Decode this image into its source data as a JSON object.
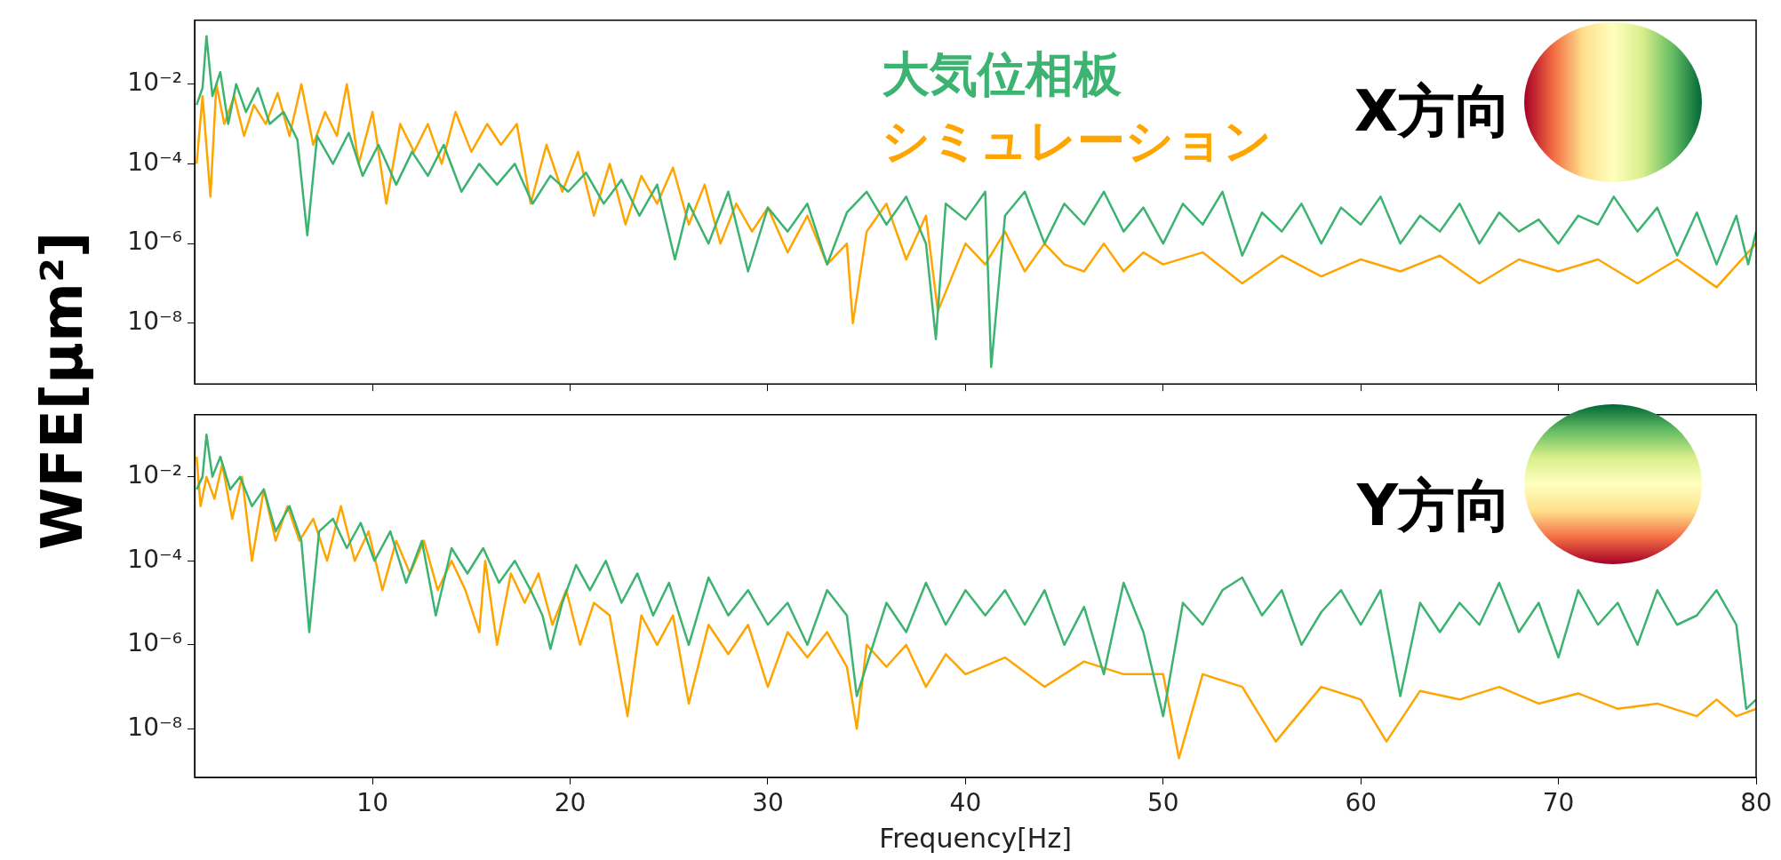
{
  "chart_data": [
    {
      "type": "line",
      "ylabel": "WFE[μm²]",
      "annotations": [
        "X方向"
      ],
      "legend": "top right",
      "log": true,
      "tick_labels": "y",
      "xlim": [
        1,
        80
      ],
      "xticks": [
        10,
        20,
        30,
        40,
        50,
        60,
        70,
        80
      ],
      "ylim": [
        3e-10,
        0.4
      ],
      "yticks": [
        {
          "value": 1e-08,
          "label": "10⁻⁸"
        },
        {
          "value": 1e-06,
          "label": "10⁻⁶"
        },
        {
          "value": 0.0001,
          "label": "10⁻⁴"
        },
        {
          "value": 0.01,
          "label": "10⁻²"
        }
      ],
      "series": [
        {
          "name": "大気位相板",
          "color": "#3cb371",
          "x": [
            1.1,
            1.4,
            1.6,
            1.9,
            2.3,
            2.7,
            3.1,
            3.6,
            4.2,
            4.8,
            5.5,
            6.2,
            6.7,
            7.2,
            8,
            8.8,
            9.5,
            10.3,
            11.2,
            12,
            12.8,
            13.6,
            14.5,
            15.4,
            16.3,
            17.2,
            18.1,
            19,
            19.9,
            20.8,
            21.7,
            22.6,
            23.5,
            24.4,
            25.3,
            26,
            27,
            28,
            29,
            30,
            31,
            32,
            33,
            34,
            35,
            36,
            37,
            38,
            38.5,
            39,
            40,
            41,
            41.3,
            42,
            43,
            44,
            45,
            46,
            47,
            48,
            49,
            50,
            51,
            52,
            53,
            54,
            55,
            56,
            57,
            58,
            59,
            60,
            61,
            62,
            63,
            64,
            65,
            66,
            67,
            68,
            69,
            70,
            71,
            72,
            72.8,
            74,
            75,
            76,
            77,
            78,
            79,
            79.6,
            80
          ],
          "values": [
            0.003,
            0.008,
            0.16,
            0.005,
            0.02,
            0.001,
            0.01,
            0.002,
            0.008,
            0.001,
            0.002,
            0.0004,
            1.6e-06,
            0.0005,
            0.0001,
            0.0006,
            5e-05,
            0.0003,
            3e-05,
            0.0002,
            5e-05,
            0.0003,
            2e-05,
            0.0001,
            3e-05,
            0.0001,
            1e-05,
            5e-05,
            2e-05,
            6e-05,
            1e-05,
            4e-05,
            5e-06,
            3e-05,
            4e-07,
            1e-05,
            1e-06,
            2e-05,
            2e-07,
            8e-06,
            2e-06,
            1e-05,
            3e-07,
            6e-06,
            2e-05,
            3e-06,
            1.5e-05,
            1e-06,
            4e-09,
            1e-05,
            4e-06,
            2e-05,
            8e-10,
            5e-06,
            2e-05,
            1e-06,
            1e-05,
            3e-06,
            2e-05,
            2e-06,
            8e-06,
            1e-06,
            1e-05,
            3e-06,
            2e-05,
            5e-07,
            6e-06,
            2e-06,
            1e-05,
            1e-06,
            8e-06,
            3e-06,
            1.5e-05,
            1e-06,
            5e-06,
            2e-06,
            1e-05,
            1e-06,
            6e-06,
            2e-06,
            4e-06,
            1e-06,
            5e-06,
            3e-06,
            1.5e-05,
            2e-06,
            8e-06,
            5e-07,
            6e-06,
            3e-07,
            5e-06,
            3e-07,
            2e-06
          ]
        },
        {
          "name": "シミュレーション",
          "color": "#ffa500",
          "x": [
            1.1,
            1.4,
            1.8,
            2.1,
            2.5,
            3,
            3.5,
            4,
            4.6,
            5.2,
            5.8,
            6.4,
            7,
            7.6,
            8.2,
            8.7,
            9.3,
            10,
            10.7,
            11.4,
            12.1,
            12.8,
            13.5,
            14.2,
            15,
            15.8,
            16.5,
            17.3,
            18,
            18.8,
            19.6,
            20.4,
            21.2,
            22,
            22.8,
            23.6,
            24.4,
            25.2,
            26,
            26.8,
            27.6,
            28.4,
            29.2,
            30,
            31,
            32,
            33,
            34,
            34.3,
            35,
            36,
            37,
            38,
            38.6,
            40,
            41,
            42,
            43,
            44,
            45,
            46,
            47,
            48,
            49,
            50,
            52,
            54,
            56,
            58,
            60,
            62,
            64,
            66,
            68,
            70,
            72,
            74,
            76,
            78,
            80
          ],
          "values": [
            0.0001,
            0.005,
            1.5e-05,
            0.01,
            0.001,
            0.005,
            0.0005,
            0.003,
            0.001,
            0.006,
            0.0005,
            0.01,
            0.0003,
            0.002,
            0.0005,
            0.01,
            0.0001,
            0.002,
            1e-05,
            0.001,
            0.0002,
            0.001,
            0.0001,
            0.002,
            0.0002,
            0.001,
            0.0003,
            0.001,
            1e-05,
            0.0003,
            2e-05,
            0.0002,
            5e-06,
            0.0001,
            3e-06,
            5e-05,
            1e-05,
            8e-05,
            3e-06,
            3e-05,
            1e-06,
            1e-05,
            2e-06,
            8e-06,
            6e-07,
            5e-06,
            3e-07,
            1e-06,
            1e-08,
            2e-06,
            1e-05,
            4e-07,
            5e-06,
            2e-08,
            1e-06,
            3e-07,
            2e-06,
            2e-07,
            1e-06,
            3e-07,
            2e-07,
            1e-06,
            2e-07,
            6e-07,
            3e-07,
            6e-07,
            1e-07,
            5e-07,
            1.5e-07,
            4e-07,
            2e-07,
            5e-07,
            1e-07,
            4e-07,
            2e-07,
            4e-07,
            1e-07,
            4e-07,
            8e-08,
            1e-06
          ]
        }
      ]
    },
    {
      "type": "line",
      "xlabel": "Frequency[Hz]",
      "annotations": [
        "Y方向"
      ],
      "log": true,
      "xlim": [
        1,
        80
      ],
      "xticks": [
        10,
        20,
        30,
        40,
        50,
        60,
        70,
        80
      ],
      "ylim": [
        7e-10,
        0.3
      ],
      "yticks": [
        {
          "value": 1e-08,
          "label": "10⁻⁸"
        },
        {
          "value": 1e-06,
          "label": "10⁻⁶"
        },
        {
          "value": 0.0001,
          "label": "10⁻⁴"
        },
        {
          "value": 0.01,
          "label": "10⁻²"
        }
      ],
      "series": [
        {
          "color": "#3cb371",
          "x": [
            1.1,
            1.4,
            1.6,
            1.9,
            2.3,
            2.8,
            3.3,
            3.9,
            4.5,
            5.1,
            5.8,
            6.4,
            6.8,
            7.3,
            8,
            8.7,
            9.4,
            10.1,
            10.9,
            11.7,
            12.5,
            13.2,
            14,
            14.8,
            15.6,
            16.4,
            17.2,
            18,
            18.6,
            19,
            19.6,
            20.3,
            21,
            21.8,
            22.6,
            23.4,
            24.2,
            25,
            26,
            27,
            28,
            29,
            30,
            31,
            32,
            33,
            34,
            34.5,
            36,
            37,
            38,
            39,
            40,
            41,
            42,
            43,
            44,
            45,
            46,
            47,
            48,
            49,
            50,
            51,
            52,
            53,
            54,
            55,
            56,
            57,
            58,
            59,
            60,
            61,
            62,
            63,
            64,
            65,
            66,
            67,
            68,
            69,
            70,
            71,
            72,
            73,
            74,
            75,
            76,
            77,
            78,
            79,
            79.5,
            80
          ],
          "values": [
            0.005,
            0.01,
            0.1,
            0.01,
            0.03,
            0.005,
            0.01,
            0.002,
            0.005,
            0.0005,
            0.002,
            0.0003,
            2e-06,
            0.0005,
            0.001,
            0.0002,
            0.0008,
            0.0001,
            0.0005,
            3e-05,
            0.0003,
            5e-06,
            0.0002,
            5e-05,
            0.0002,
            3e-05,
            0.0001,
            2e-05,
            5e-06,
            8e-07,
            1e-05,
            8e-05,
            2e-05,
            0.0001,
            1e-05,
            5e-05,
            5e-06,
            3e-05,
            1e-06,
            4e-05,
            5e-06,
            2e-05,
            3e-06,
            1e-05,
            1e-06,
            2e-05,
            5e-06,
            6e-08,
            1e-05,
            2e-06,
            3e-05,
            3e-06,
            2e-05,
            5e-06,
            2e-05,
            3e-06,
            2e-05,
            1e-06,
            8e-06,
            2e-07,
            3e-05,
            2e-06,
            2e-08,
            1e-05,
            3e-06,
            2e-05,
            4e-05,
            5e-06,
            2e-05,
            1e-06,
            6e-06,
            2e-05,
            3e-06,
            2e-05,
            6e-08,
            1e-05,
            2e-06,
            1e-05,
            3e-06,
            3e-05,
            2e-06,
            1e-05,
            5e-07,
            2e-05,
            3e-06,
            1e-05,
            1e-06,
            2e-05,
            3e-06,
            5e-06,
            2e-05,
            3e-06,
            3e-08,
            5e-08
          ]
        },
        {
          "color": "#ffa500",
          "x": [
            1.1,
            1.3,
            1.6,
            2,
            2.4,
            2.9,
            3.4,
            3.9,
            4.5,
            5.1,
            5.7,
            6.3,
            7,
            7.7,
            8.4,
            9.1,
            9.8,
            10.5,
            11.2,
            11.9,
            12.6,
            13.3,
            14,
            14.7,
            15.4,
            15.7,
            16.3,
            17,
            17.7,
            18.4,
            19.1,
            19.8,
            20.5,
            21.2,
            22,
            22.9,
            23.6,
            24.4,
            25.2,
            26,
            27,
            28,
            29,
            30,
            31,
            32,
            33,
            34,
            34.5,
            35,
            36,
            37,
            38,
            39,
            40,
            42,
            44,
            46,
            48,
            50,
            50.8,
            52,
            54,
            55.7,
            58,
            60,
            61.3,
            63,
            65,
            67,
            69,
            71,
            73,
            75,
            77,
            78,
            79,
            80
          ],
          "values": [
            0.03,
            0.002,
            0.01,
            0.003,
            0.02,
            0.001,
            0.01,
            0.0001,
            0.005,
            0.0003,
            0.002,
            0.0003,
            0.001,
            0.0001,
            0.002,
            0.0001,
            0.0005,
            2e-05,
            0.0003,
            5e-05,
            0.0003,
            2e-05,
            0.0001,
            2e-05,
            2e-06,
            0.0001,
            1e-06,
            5e-05,
            1e-05,
            5e-05,
            3e-06,
            2e-05,
            1e-06,
            1e-05,
            5e-06,
            2e-08,
            5e-06,
            1e-06,
            5e-06,
            4e-08,
            3e-06,
            6e-07,
            3e-06,
            1e-07,
            2e-06,
            5e-07,
            2e-06,
            3e-07,
            1e-08,
            1e-06,
            3e-07,
            1e-06,
            1e-07,
            6e-07,
            2e-07,
            5e-07,
            1e-07,
            4e-07,
            2e-07,
            2e-07,
            2e-09,
            2e-07,
            1e-07,
            5e-09,
            1e-07,
            5e-08,
            5e-09,
            8e-08,
            5e-08,
            1e-07,
            4e-08,
            7e-08,
            3e-08,
            4e-08,
            2e-08,
            5e-08,
            2e-08,
            3e-08
          ]
        }
      ]
    }
  ]
}
